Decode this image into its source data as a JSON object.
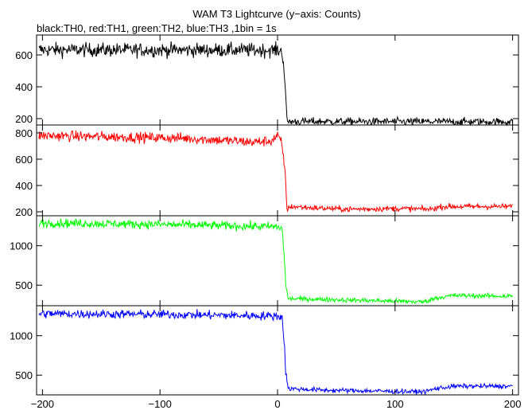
{
  "chart_data": {
    "type": "line",
    "title": "WAM T3 Lightcurve (y−axis: Counts)",
    "subtitle": "black:TH0, red:TH1, green:TH2, blue:TH3 ,1bin = 1s",
    "xlabel": "",
    "ylabel": "",
    "xlim": [
      -205,
      205
    ],
    "x_ticks": [
      -200,
      -100,
      0,
      100,
      200
    ],
    "x_tick_labels": [
      "−200",
      "−100",
      "0",
      "100",
      "200"
    ],
    "bin_seconds": 1,
    "grid": false,
    "legend": "none",
    "panels": [
      {
        "name": "TH0",
        "color": "#000000",
        "ylim": [
          160,
          725
        ],
        "y_ticks": [
          200,
          400,
          600
        ],
        "profile": [
          [
            -203,
            632
          ],
          [
            0,
            630
          ],
          [
            4,
            620
          ],
          [
            6,
            470
          ],
          [
            7,
            330
          ],
          [
            8,
            190
          ],
          [
            9,
            182
          ],
          [
            200,
            180
          ]
        ],
        "noise": 22
      },
      {
        "name": "TH1",
        "color": "#ff0000",
        "ylim": [
          170,
          860
        ],
        "y_ticks": [
          200,
          400,
          600,
          800
        ],
        "profile": [
          [
            -203,
            780
          ],
          [
            -80,
            760
          ],
          [
            -20,
            730
          ],
          [
            -5,
            740
          ],
          [
            0,
            780
          ],
          [
            3,
            730
          ],
          [
            5,
            630
          ],
          [
            7,
            420
          ],
          [
            8,
            220
          ],
          [
            12,
            240
          ],
          [
            30,
            230
          ],
          [
            60,
            220
          ],
          [
            100,
            225
          ],
          [
            130,
            220
          ],
          [
            140,
            240
          ],
          [
            200,
            240
          ]
        ],
        "noise": 20
      },
      {
        "name": "TH2",
        "color": "#00ff00",
        "ylim": [
          240,
          1380
        ],
        "y_ticks": [
          500,
          1000
        ],
        "profile": [
          [
            -203,
            1290
          ],
          [
            -100,
            1270
          ],
          [
            0,
            1240
          ],
          [
            4,
            1210
          ],
          [
            6,
            800
          ],
          [
            7,
            500
          ],
          [
            9,
            330
          ],
          [
            40,
            320
          ],
          [
            120,
            290
          ],
          [
            125,
            290
          ],
          [
            135,
            340
          ],
          [
            150,
            370
          ],
          [
            200,
            360
          ]
        ],
        "noise": 28
      },
      {
        "name": "TH3",
        "color": "#0000ff",
        "ylim": [
          250,
          1380
        ],
        "y_ticks": [
          500,
          1000
        ],
        "profile": [
          [
            -203,
            1280
          ],
          [
            -100,
            1270
          ],
          [
            0,
            1250
          ],
          [
            4,
            1230
          ],
          [
            6,
            850
          ],
          [
            7,
            550
          ],
          [
            9,
            330
          ],
          [
            40,
            310
          ],
          [
            120,
            290
          ],
          [
            125,
            290
          ],
          [
            135,
            330
          ],
          [
            150,
            360
          ],
          [
            200,
            360
          ]
        ],
        "noise": 28
      }
    ]
  }
}
